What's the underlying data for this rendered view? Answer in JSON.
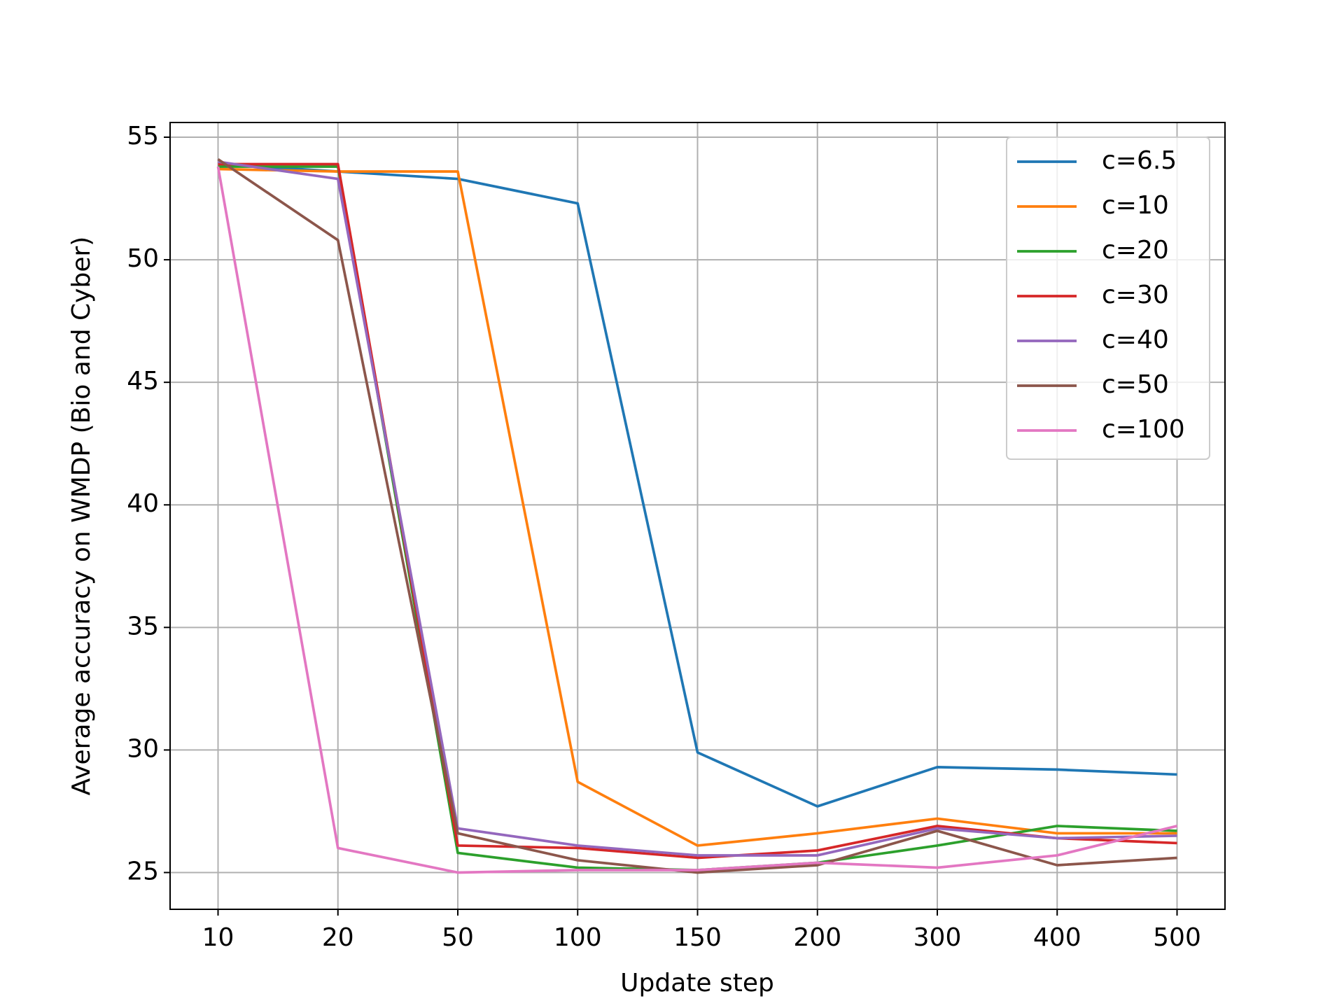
{
  "chart_data": {
    "type": "line",
    "xlabel": "Update step",
    "ylabel": "Average accuracy on WMDP (Bio and Cyber)",
    "categories": [
      "10",
      "20",
      "50",
      "100",
      "150",
      "200",
      "300",
      "400",
      "500"
    ],
    "series": [
      {
        "name": "c=6.5",
        "color": "#1f77b4",
        "values": [
          53.9,
          53.6,
          53.3,
          52.3,
          29.9,
          27.7,
          29.3,
          29.2,
          29.0
        ]
      },
      {
        "name": "c=10",
        "color": "#ff7f0e",
        "values": [
          53.7,
          53.6,
          53.6,
          28.7,
          26.1,
          26.6,
          27.2,
          26.6,
          26.6
        ]
      },
      {
        "name": "c=20",
        "color": "#2ca02c",
        "values": [
          53.8,
          53.8,
          25.8,
          25.2,
          25.1,
          25.4,
          26.1,
          26.9,
          26.7
        ]
      },
      {
        "name": "c=30",
        "color": "#d62728",
        "values": [
          53.9,
          53.9,
          26.1,
          26.0,
          25.6,
          25.9,
          26.9,
          26.4,
          26.2
        ]
      },
      {
        "name": "c=40",
        "color": "#9467bd",
        "values": [
          54.0,
          53.3,
          26.8,
          26.1,
          25.7,
          25.7,
          26.8,
          26.4,
          26.5
        ]
      },
      {
        "name": "c=50",
        "color": "#8c564b",
        "values": [
          54.1,
          50.8,
          26.6,
          25.5,
          25.0,
          25.3,
          26.7,
          25.3,
          25.6
        ]
      },
      {
        "name": "c=100",
        "color": "#e377c2",
        "values": [
          53.8,
          26.0,
          25.0,
          25.1,
          25.1,
          25.4,
          25.2,
          25.7,
          26.9
        ]
      }
    ],
    "ylim": [
      23.5,
      55.6
    ],
    "yticks": [
      25,
      30,
      35,
      40,
      45,
      50,
      55
    ],
    "grid": true,
    "legend": "upper right"
  }
}
